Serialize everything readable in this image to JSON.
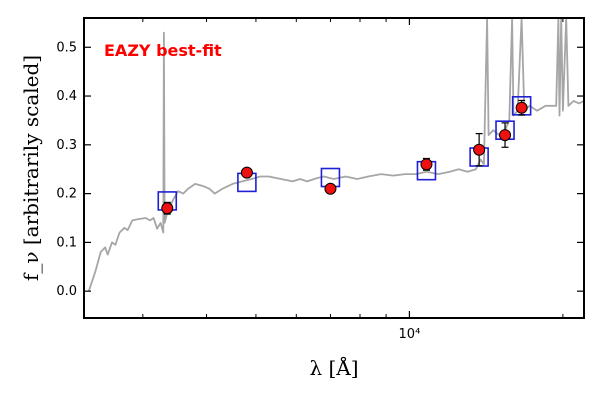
{
  "chart_data": {
    "type": "scatter",
    "title": "",
    "annotation": "EAZY best-fit",
    "annotation_color": "#ff0000",
    "xlabel": "λ [Å]",
    "ylabel": "f_ν [arbitrarily scaled]",
    "xscale": "log",
    "xlim": [
      2300,
      22000
    ],
    "ylim": [
      -0.055,
      0.56
    ],
    "x_major_ticks": [
      10000
    ],
    "x_major_tick_labels": [
      "10⁴"
    ],
    "x_minor_ticks": [
      3000,
      4000,
      5000,
      6000,
      7000,
      8000,
      9000,
      20000
    ],
    "yticks": [
      0.0,
      0.1,
      0.2,
      0.3,
      0.4,
      0.5
    ],
    "ytick_labels": [
      "0.0",
      "0.1",
      "0.2",
      "0.3",
      "0.4",
      "0.5"
    ],
    "grid": false,
    "legend": "none",
    "colors": {
      "template": "#a6a6a6",
      "model_marker": "#1f1fd6",
      "observed_marker": "#ee1111",
      "errorbar": "#000000"
    },
    "series": [
      {
        "kind": "line",
        "points": [
          [
            2350,
            0.0
          ],
          [
            2420,
            0.04
          ],
          [
            2480,
            0.08
          ],
          [
            2530,
            0.09
          ],
          [
            2560,
            0.075
          ],
          [
            2610,
            0.1
          ],
          [
            2650,
            0.095
          ],
          [
            2700,
            0.12
          ],
          [
            2760,
            0.13
          ],
          [
            2800,
            0.125
          ],
          [
            2860,
            0.145
          ],
          [
            2950,
            0.148
          ],
          [
            3040,
            0.15
          ],
          [
            3100,
            0.145
          ],
          [
            3150,
            0.15
          ],
          [
            3200,
            0.128
          ],
          [
            3250,
            0.14
          ],
          [
            3290,
            0.12
          ],
          [
            3300,
            0.53
          ],
          [
            3310,
            0.14
          ],
          [
            3360,
            0.165
          ],
          [
            3450,
            0.19
          ],
          [
            3520,
            0.205
          ],
          [
            3600,
            0.2
          ],
          [
            3680,
            0.21
          ],
          [
            3800,
            0.22
          ],
          [
            3950,
            0.215
          ],
          [
            4050,
            0.21
          ],
          [
            4150,
            0.2
          ],
          [
            4300,
            0.21
          ],
          [
            4500,
            0.22
          ],
          [
            4700,
            0.225
          ],
          [
            4900,
            0.23
          ],
          [
            5100,
            0.235
          ],
          [
            5300,
            0.235
          ],
          [
            5600,
            0.23
          ],
          [
            5900,
            0.225
          ],
          [
            6100,
            0.23
          ],
          [
            6300,
            0.225
          ],
          [
            6600,
            0.232
          ],
          [
            6800,
            0.235
          ],
          [
            7100,
            0.23
          ],
          [
            7500,
            0.235
          ],
          [
            7900,
            0.23
          ],
          [
            8300,
            0.235
          ],
          [
            8800,
            0.24
          ],
          [
            9300,
            0.237
          ],
          [
            9800,
            0.24
          ],
          [
            10300,
            0.24
          ],
          [
            10800,
            0.245
          ],
          [
            11400,
            0.24
          ],
          [
            12000,
            0.245
          ],
          [
            12500,
            0.25
          ],
          [
            13000,
            0.245
          ],
          [
            13500,
            0.25
          ],
          [
            13800,
            0.27
          ],
          [
            14000,
            0.26
          ],
          [
            14200,
            0.56
          ],
          [
            14300,
            0.32
          ],
          [
            14600,
            0.33
          ],
          [
            15000,
            0.32
          ],
          [
            15400,
            0.33
          ],
          [
            15700,
            0.35
          ],
          [
            15900,
            0.56
          ],
          [
            16000,
            0.36
          ],
          [
            16300,
            0.37
          ],
          [
            16600,
            0.56
          ],
          [
            16800,
            0.37
          ],
          [
            17200,
            0.38
          ],
          [
            17800,
            0.37
          ],
          [
            18500,
            0.38
          ],
          [
            19400,
            0.38
          ],
          [
            19600,
            0.56
          ],
          [
            19700,
            0.36
          ],
          [
            19850,
            0.56
          ],
          [
            20000,
            0.37
          ],
          [
            20300,
            0.56
          ],
          [
            20500,
            0.38
          ],
          [
            21000,
            0.39
          ],
          [
            21500,
            0.385
          ],
          [
            22000,
            0.39
          ]
        ]
      },
      {
        "kind": "scatter",
        "marker": "open-square",
        "x": [
          3350,
          4800,
          7000,
          10800,
          13700,
          15400,
          16600
        ],
        "y": [
          0.185,
          0.223,
          0.233,
          0.247,
          0.275,
          0.33,
          0.38
        ]
      },
      {
        "kind": "scatter",
        "marker": "filled-circle",
        "x": [
          3350,
          4800,
          7000,
          10800,
          13700,
          15400,
          16600
        ],
        "y": [
          0.17,
          0.243,
          0.21,
          0.26,
          0.29,
          0.32,
          0.376
        ],
        "yerr": [
          0.012,
          0.006,
          0.008,
          0.012,
          0.033,
          0.025,
          0.015
        ]
      }
    ]
  }
}
